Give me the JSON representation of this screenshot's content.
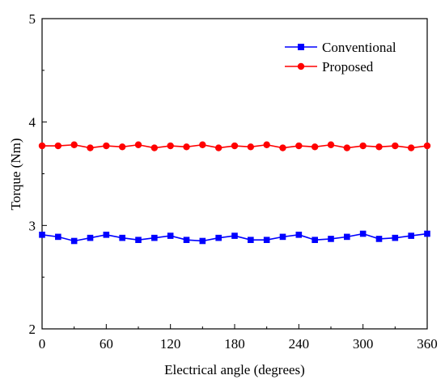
{
  "chart_data": {
    "type": "line",
    "xlabel": "Electrical angle (degrees)",
    "ylabel": "Torque (Nm)",
    "xlim": [
      0,
      360
    ],
    "ylim": [
      2,
      5
    ],
    "xticks": [
      "0",
      "60",
      "120",
      "180",
      "240",
      "300",
      "360"
    ],
    "yticks": [
      "2",
      "3",
      "4",
      "5"
    ],
    "grid": false,
    "legend_position": "top-right",
    "x": [
      0,
      15,
      30,
      45,
      60,
      75,
      90,
      105,
      120,
      135,
      150,
      165,
      180,
      195,
      210,
      225,
      240,
      255,
      270,
      285,
      300,
      315,
      330,
      345,
      360
    ],
    "series": [
      {
        "name": "Conventional",
        "color": "#0000ff",
        "marker": "square",
        "values": [
          2.91,
          2.89,
          2.85,
          2.88,
          2.91,
          2.88,
          2.86,
          2.88,
          2.9,
          2.86,
          2.85,
          2.88,
          2.9,
          2.86,
          2.86,
          2.89,
          2.91,
          2.86,
          2.87,
          2.89,
          2.92,
          2.87,
          2.88,
          2.9,
          2.92
        ]
      },
      {
        "name": "Proposed",
        "color": "#ff0000",
        "marker": "circle",
        "values": [
          3.77,
          3.77,
          3.78,
          3.75,
          3.77,
          3.76,
          3.78,
          3.75,
          3.77,
          3.76,
          3.78,
          3.75,
          3.77,
          3.76,
          3.78,
          3.75,
          3.77,
          3.76,
          3.78,
          3.75,
          3.77,
          3.76,
          3.77,
          3.75,
          3.77
        ]
      }
    ]
  }
}
